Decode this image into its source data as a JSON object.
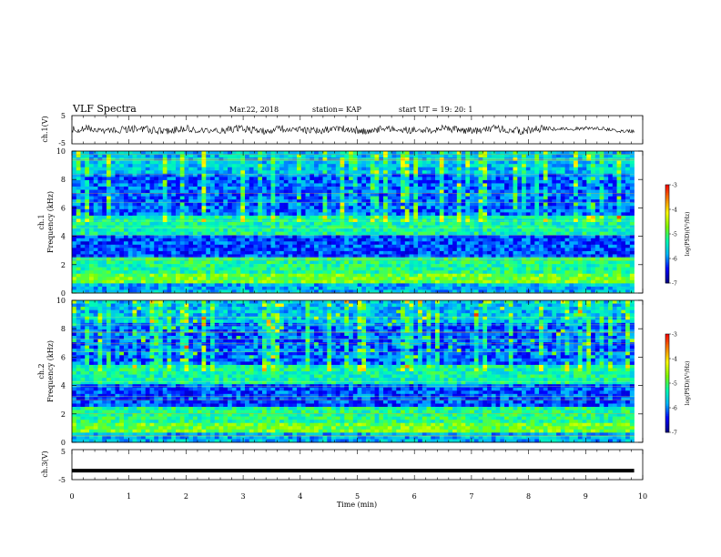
{
  "header": {
    "title": "VLF Spectra",
    "date": "Mar.22, 2018",
    "station": "station= KAP",
    "start": "start  UT =  19: 20: 1"
  },
  "colors": {
    "background": "#ffffff",
    "axis": "#000000",
    "colormap": [
      "#000080",
      "#0000ff",
      "#00b4ff",
      "#00ffb0",
      "#80ff00",
      "#ffff00",
      "#ff8000",
      "#ff0000",
      "#ffffff"
    ]
  },
  "chart_data": [
    {
      "type": "line",
      "ylabel": "ch.1(V)",
      "ylim": [
        -5,
        5
      ],
      "yticks": [
        "5",
        "-5"
      ],
      "xlim": [
        0,
        10
      ],
      "description_values": {
        "mean": 0,
        "amplitude_approx": 1.5
      }
    },
    {
      "type": "heatmap",
      "ylabel": "ch.1\nFrequency (kHz)",
      "ylabel_lines": [
        "ch.1",
        "Frequency (kHz)"
      ],
      "ylim": [
        0,
        10
      ],
      "yticks": [
        "0",
        "2",
        "4",
        "6",
        "8",
        "10"
      ],
      "xlim": [
        0,
        9.85
      ],
      "colorbar": {
        "label": "log(PSD)(V²/Hz)",
        "range": [
          -7,
          -3
        ],
        "ticks": [
          "-3",
          "-4",
          "-5",
          "-6",
          "-7"
        ]
      }
    },
    {
      "type": "heatmap",
      "ylabel": "ch.2\nFrequency (kHz)",
      "ylabel_lines": [
        "ch.2",
        "Frequency (kHz)"
      ],
      "ylim": [
        0,
        10
      ],
      "yticks": [
        "0",
        "2",
        "4",
        "6",
        "8",
        "10"
      ],
      "xlim": [
        0,
        9.85
      ],
      "colorbar": {
        "label": "log(PSD)(V²/Hz)",
        "range": [
          -7,
          -3
        ],
        "ticks": [
          "-3",
          "-4",
          "-5",
          "-6",
          "-7"
        ]
      }
    },
    {
      "type": "line",
      "ylabel": "ch.3(V)",
      "ylim": [
        -5,
        5
      ],
      "yticks": [
        "5",
        "-5"
      ],
      "xlim": [
        0,
        10
      ],
      "series": [
        {
          "x": [
            0,
            9.85
          ],
          "values": [
            -2,
            -2
          ]
        }
      ]
    }
  ],
  "xaxis": {
    "label": "Time (min)",
    "ticks": [
      "0",
      "1",
      "2",
      "3",
      "4",
      "5",
      "6",
      "7",
      "8",
      "9",
      "10"
    ],
    "range": [
      0,
      10
    ]
  }
}
